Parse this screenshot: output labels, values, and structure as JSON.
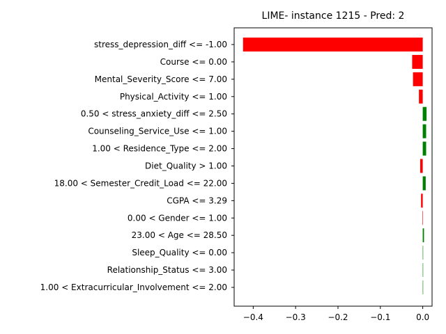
{
  "chart_data": {
    "type": "bar",
    "orientation": "horizontal",
    "title": "LIME- instance 1215 - Pred: 2",
    "xlabel": "",
    "ylabel": "",
    "xlim": [
      -0.445,
      0.022
    ],
    "x_ticks": [
      -0.4,
      -0.3,
      -0.2,
      -0.1,
      0.0
    ],
    "x_tick_labels": [
      "−0.4",
      "−0.3",
      "−0.2",
      "−0.1",
      "0.0"
    ],
    "grid": false,
    "colors": {
      "positive": "#008000",
      "negative": "#ff0000"
    },
    "categories": [
      "stress_depression_diff <= -1.00",
      "Course <= 0.00",
      "Mental_Severity_Score <= 7.00",
      "Physical_Activity <= 1.00",
      "0.50 < stress_anxiety_diff <= 2.50",
      "Counseling_Service_Use <= 1.00",
      "1.00 < Residence_Type <= 2.00",
      "Diet_Quality > 1.00",
      "18.00 < Semester_Credit_Load <= 22.00",
      "CGPA <= 3.29",
      "0.00 < Gender <= 1.00",
      "23.00 < Age <= 28.50",
      "Sleep_Quality <= 0.00",
      "Relationship_Status <= 3.00",
      "1.00 < Extracurricular_Involvement <= 2.00"
    ],
    "values": [
      -0.424,
      -0.025,
      -0.023,
      -0.009,
      0.009,
      0.008,
      0.008,
      -0.006,
      0.007,
      -0.004,
      -0.001,
      0.003,
      0.001,
      0.001,
      0.001
    ]
  }
}
